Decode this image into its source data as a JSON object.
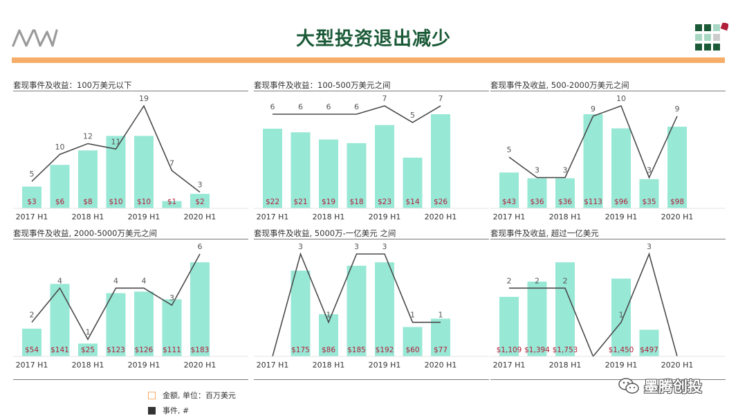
{
  "header": {
    "title": "大型投资退出减少"
  },
  "legend": {
    "amount_label": "金额, 单位：百万美元",
    "events_label": "事件, #"
  },
  "watermark": {
    "text": "墨腾创投"
  },
  "colors": {
    "bar": "#98e8d6",
    "line": "#4a4a4a",
    "value_label": "#b0203a",
    "accent": "#f5ad69",
    "title": "#1a5a37"
  },
  "chart_data": [
    {
      "type": "bar",
      "title": "套现事件及收益：100万美元以下",
      "categories": [
        "2017 H1",
        "2017 H2",
        "2018 H1",
        "2018 H2",
        "2019 H1",
        "2019 H2",
        "2020 H1"
      ],
      "tick_labels": [
        "2017 H1",
        "",
        "2018 H1",
        "",
        "2019 H1",
        "",
        "2020 H1"
      ],
      "series": [
        {
          "kind": "bar",
          "values": [
            3,
            6,
            8,
            10,
            10,
            1,
            2
          ],
          "labels": [
            "$3",
            "$6",
            "$8",
            "$10",
            "$10",
            "$1",
            "$2"
          ]
        },
        {
          "kind": "line",
          "values": [
            5,
            10,
            12,
            11,
            19,
            7,
            3
          ]
        }
      ]
    },
    {
      "type": "bar",
      "title": "套现事件及收益：100-500万美元之间",
      "categories": [
        "2017 H1",
        "2017 H2",
        "2018 H1",
        "2018 H2",
        "2019 H1",
        "2019 H2",
        "2020 H1"
      ],
      "tick_labels": [
        "2017 H1",
        "",
        "2018 H1",
        "",
        "2019 H1",
        "",
        "2020 H1"
      ],
      "series": [
        {
          "kind": "bar",
          "values": [
            22,
            21,
            19,
            18,
            23,
            14,
            26
          ],
          "labels": [
            "$22",
            "$21",
            "$19",
            "$18",
            "$23",
            "$14",
            "$26"
          ]
        },
        {
          "kind": "line",
          "values": [
            6,
            6,
            6,
            6,
            7,
            5,
            7
          ]
        }
      ]
    },
    {
      "type": "bar",
      "title": "套现事件及收益, 500-2000万美元之间",
      "categories": [
        "2017 H1",
        "2017 H2",
        "2018 H1",
        "2018 H2",
        "2019 H1",
        "2019 H2",
        "2020 H1"
      ],
      "tick_labels": [
        "2017 H1",
        "",
        "2018 H1",
        "",
        "2019 H1",
        "",
        "2020 H1"
      ],
      "series": [
        {
          "kind": "bar",
          "values": [
            43,
            36,
            36,
            113,
            96,
            35,
            98
          ],
          "labels": [
            "$43",
            "$36",
            "$36",
            "$113",
            "$96",
            "$35",
            "$98"
          ]
        },
        {
          "kind": "line",
          "values": [
            5,
            3,
            3,
            9,
            10,
            3,
            9
          ]
        }
      ]
    },
    {
      "type": "bar",
      "title": "套现事件及收益, 2000-5000万美元之间",
      "categories": [
        "2017 H1",
        "2017 H2",
        "2018 H1",
        "2018 H2",
        "2019 H1",
        "2019 H2",
        "2020 H1"
      ],
      "tick_labels": [
        "2017 H1",
        "",
        "2018 H1",
        "",
        "2019 H1",
        "",
        "2020 H1"
      ],
      "series": [
        {
          "kind": "bar",
          "values": [
            54,
            141,
            25,
            123,
            126,
            111,
            183
          ],
          "labels": [
            "$54",
            "$141",
            "$25",
            "$123",
            "$126",
            "$111",
            "$183"
          ]
        },
        {
          "kind": "line",
          "values": [
            2,
            4,
            1,
            4,
            4,
            3,
            6
          ]
        }
      ]
    },
    {
      "type": "bar",
      "title": "套现事件及收益, 5000万-一亿美元 之间",
      "categories": [
        "2017 H1",
        "2017 H2",
        "2018 H1",
        "2018 H2",
        "2019 H1",
        "2019 H2",
        "2020 H1"
      ],
      "tick_labels": [
        "2017 H1",
        "",
        "2018 H1",
        "",
        "2019 H1",
        "",
        "2020 H1"
      ],
      "series": [
        {
          "kind": "bar",
          "values": [
            0,
            175,
            86,
            185,
            192,
            60,
            77
          ],
          "labels": [
            "",
            "$175",
            "$86",
            "$185",
            "$192",
            "$60",
            "$77"
          ]
        },
        {
          "kind": "line",
          "values": [
            0,
            3,
            1,
            3,
            3,
            1,
            1
          ],
          "labels": [
            "",
            "3",
            "1",
            "3",
            "3",
            "1",
            "1"
          ]
        }
      ]
    },
    {
      "type": "bar",
      "title": "套现事件及收益, 超过一亿美元",
      "categories": [
        "2017 H1",
        "2017 H2",
        "2018 H1",
        "2018 H2",
        "2019 H1",
        "2019 H2",
        "2020 H1"
      ],
      "tick_labels": [
        "2017 H1",
        "",
        "2018 H1",
        "",
        "2019 H1",
        "",
        "2020 H1"
      ],
      "series": [
        {
          "kind": "bar",
          "values": [
            1109,
            1394,
            1753,
            0,
            1450,
            497,
            0
          ],
          "labels": [
            "$1,109",
            "$1,394",
            "$1,753",
            "",
            "$1,450",
            "$497",
            ""
          ]
        },
        {
          "kind": "line",
          "values": [
            2,
            2,
            2,
            0,
            1,
            3,
            0
          ],
          "labels": [
            "2",
            "2",
            "2",
            "",
            "1",
            "3",
            ""
          ]
        }
      ]
    }
  ]
}
